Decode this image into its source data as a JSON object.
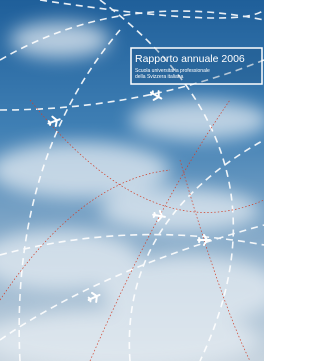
{
  "cover": {
    "title": "Rapporto annuale 2006",
    "subtitle_lines": [
      "Scuola universitaria professionale",
      "della Svizzera italiana"
    ]
  }
}
